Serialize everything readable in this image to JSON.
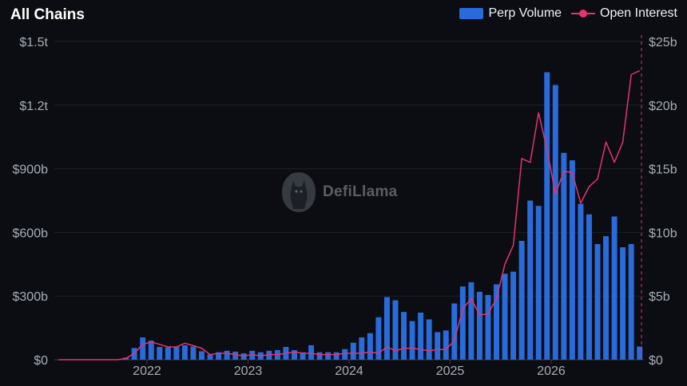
{
  "header": {
    "title": "All Chains"
  },
  "legend": [
    {
      "name": "Perp Volume",
      "color": "#2a6bdc",
      "kind": "bar"
    },
    {
      "name": "Open Interest",
      "color": "#e5336e",
      "kind": "line"
    }
  ],
  "watermark": {
    "text": "DefiLlama",
    "icon": "llama-logo-icon"
  },
  "chart_data": {
    "type": "bar",
    "x_start": "2021-02",
    "x_tick_labels": [
      "2022",
      "2023",
      "2024",
      "2025",
      "2026"
    ],
    "x_tick_months": [
      "2022-01",
      "2023-01",
      "2024-01",
      "2025-01",
      "2026-01"
    ],
    "y_left": {
      "ticks": [
        "$0",
        "$300b",
        "$600b",
        "$900b",
        "$1.2t",
        "$1.5t"
      ],
      "ylim_billions": [
        0,
        1500
      ]
    },
    "y_right": {
      "ticks": [
        "$0",
        "$5b",
        "$10b",
        "$15b",
        "$20b",
        "$25b"
      ],
      "ylim_billions": [
        0,
        25
      ]
    },
    "grid": true,
    "legend_position": "top-right",
    "series": [
      {
        "name": "Perp Volume",
        "axis": "left",
        "unit": "billions USD",
        "type": "bar",
        "values": [
          0,
          0,
          0,
          0,
          0,
          0,
          0,
          0,
          10,
          55,
          105,
          90,
          60,
          58,
          62,
          68,
          62,
          40,
          25,
          35,
          42,
          38,
          30,
          42,
          35,
          42,
          45,
          60,
          45,
          35,
          68,
          35,
          35,
          35,
          50,
          80,
          105,
          125,
          200,
          295,
          280,
          225,
          182,
          222,
          190,
          130,
          138,
          265,
          345,
          365,
          320,
          305,
          355,
          405,
          415,
          560,
          750,
          725,
          1355,
          1295,
          975,
          940,
          735,
          685,
          545,
          582,
          675,
          530,
          545,
          62
        ]
      },
      {
        "name": "Open Interest",
        "axis": "right",
        "unit": "billions USD",
        "type": "line",
        "values": [
          0,
          0,
          0,
          0,
          0,
          0,
          0,
          0,
          0.1,
          0.5,
          1.2,
          1.4,
          1.2,
          1.0,
          1.0,
          1.3,
          1.1,
          0.9,
          0.4,
          0.5,
          0.5,
          0.4,
          0.3,
          0.4,
          0.3,
          0.4,
          0.4,
          0.5,
          0.6,
          0.5,
          0.5,
          0.4,
          0.4,
          0.4,
          0.5,
          0.5,
          0.5,
          0.6,
          0.5,
          1.0,
          0.7,
          0.9,
          0.9,
          0.8,
          0.7,
          0.8,
          0.8,
          1.5,
          4.0,
          4.8,
          3.5,
          3.6,
          4.8,
          7.5,
          9.0,
          15.8,
          15.5,
          19.4,
          16.5,
          13.0,
          14.8,
          14.7,
          12.3,
          13.6,
          14.2,
          17.1,
          15.5,
          17.1,
          22.4,
          22.7
        ]
      }
    ]
  }
}
